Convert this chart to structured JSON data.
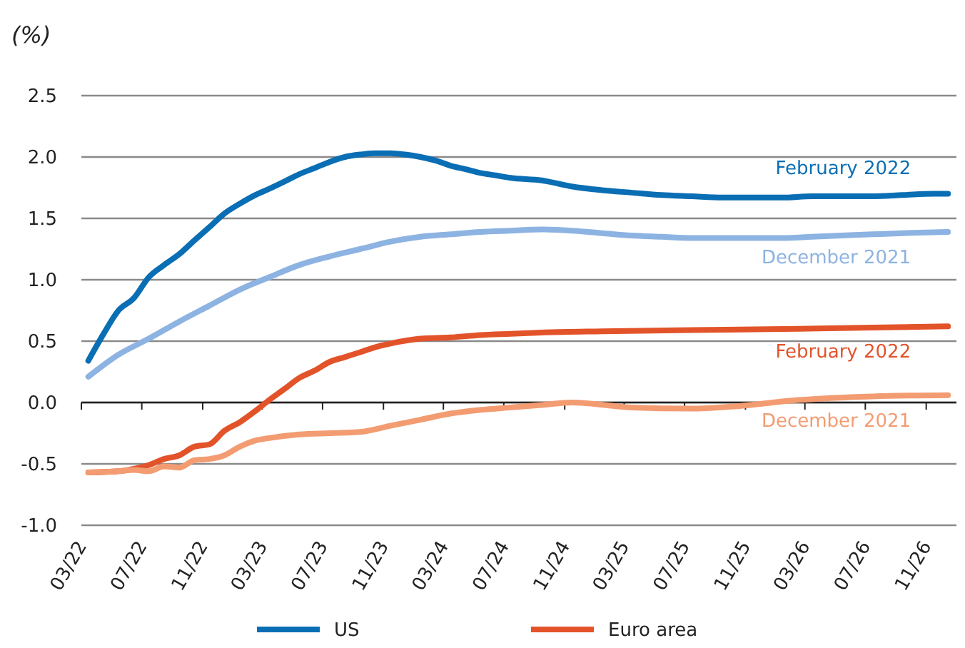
{
  "chart_data": {
    "type": "line",
    "ylabel": "(%)",
    "xlim": [
      "2022-03",
      "2027-01"
    ],
    "xticks": [
      {
        "value": "2022-03",
        "label": "03/22"
      },
      {
        "value": "2022-07",
        "label": "07/22"
      },
      {
        "value": "2022-11",
        "label": "11/22"
      },
      {
        "value": "2023-03",
        "label": "03/23"
      },
      {
        "value": "2023-07",
        "label": "07/23"
      },
      {
        "value": "2023-11",
        "label": "11/23"
      },
      {
        "value": "2024-03",
        "label": "03/24"
      },
      {
        "value": "2024-07",
        "label": "07/24"
      },
      {
        "value": "2024-11",
        "label": "11/24"
      },
      {
        "value": "2025-03",
        "label": "03/25"
      },
      {
        "value": "2025-07",
        "label": "07/25"
      },
      {
        "value": "2025-11",
        "label": "11/25"
      },
      {
        "value": "2026-03",
        "label": "03/26"
      },
      {
        "value": "2026-07",
        "label": "07/26"
      },
      {
        "value": "2026-11",
        "label": "11/26"
      }
    ],
    "ylim": [
      -1.0,
      2.5
    ],
    "yticks": [
      {
        "value": -1.0,
        "label": "-1.0"
      },
      {
        "value": -0.5,
        "label": "-0.5"
      },
      {
        "value": 0,
        "label": "0.0"
      },
      {
        "value": 0.5,
        "label": "0.5"
      },
      {
        "value": 1.0,
        "label": "1.0"
      },
      {
        "value": 1.5,
        "label": "1.5"
      },
      {
        "value": 2.0,
        "label": "2.0"
      },
      {
        "value": 2.5,
        "label": "2.5"
      }
    ],
    "grid": "y",
    "marker": "none",
    "line_style": "solid",
    "annotations": [
      "US",
      "Euro area"
    ],
    "series": [
      {
        "name": "February 2022",
        "color": "#0a6eb4",
        "x": [
          "2022-03-15",
          "2022-04-15",
          "2022-05-15",
          "2022-06-15",
          "2022-07-15",
          "2022-08-15",
          "2022-09-15",
          "2022-10-15",
          "2022-11-15",
          "2022-12-15",
          "2023-01-15",
          "2023-02-15",
          "2023-03-15",
          "2023-04-15",
          "2023-05-15",
          "2023-06-15",
          "2023-07-15",
          "2023-08-15",
          "2023-09-15",
          "2023-10-15",
          "2023-11-15",
          "2023-12-15",
          "2024-01-15",
          "2024-02-15",
          "2024-03-15",
          "2024-04-15",
          "2024-05-15",
          "2024-06-15",
          "2024-07-15",
          "2024-09-15",
          "2024-11-15",
          "2025-01-15",
          "2025-03-15",
          "2025-05-15",
          "2025-07-15",
          "2025-09-15",
          "2025-11-15",
          "2026-01-15",
          "2026-03-15",
          "2026-05-15",
          "2026-07-15",
          "2026-09-15",
          "2026-11-15",
          "2026-12-15"
        ],
        "values": [
          0.34,
          0.56,
          0.75,
          0.85,
          1.02,
          1.12,
          1.21,
          1.32,
          1.43,
          1.54,
          1.62,
          1.69,
          1.74,
          1.8,
          1.86,
          1.91,
          1.96,
          2.0,
          2.02,
          2.03,
          2.03,
          2.02,
          2.0,
          1.97,
          1.93,
          1.9,
          1.87,
          1.85,
          1.83,
          1.81,
          1.76,
          1.73,
          1.71,
          1.69,
          1.68,
          1.67,
          1.67,
          1.67,
          1.68,
          1.68,
          1.68,
          1.69,
          1.7,
          1.7
        ]
      },
      {
        "name": "December 2021",
        "color": "#8db3e2",
        "x": [
          "2022-03-15",
          "2022-05-15",
          "2022-07-15",
          "2022-09-15",
          "2022-11-15",
          "2023-01-15",
          "2023-03-15",
          "2023-05-15",
          "2023-07-15",
          "2023-09-15",
          "2023-11-15",
          "2024-01-15",
          "2024-03-15",
          "2024-05-15",
          "2024-07-15",
          "2024-09-15",
          "2024-11-15",
          "2025-01-15",
          "2025-03-15",
          "2025-05-15",
          "2025-07-15",
          "2025-11-15",
          "2026-01-15",
          "2026-03-15",
          "2026-05-15",
          "2026-07-15",
          "2026-09-15",
          "2026-12-15"
        ],
        "values": [
          0.21,
          0.39,
          0.52,
          0.66,
          0.79,
          0.92,
          1.02,
          1.12,
          1.19,
          1.25,
          1.31,
          1.35,
          1.37,
          1.39,
          1.4,
          1.41,
          1.4,
          1.38,
          1.36,
          1.35,
          1.34,
          1.34,
          1.34,
          1.35,
          1.36,
          1.37,
          1.38,
          1.39
        ]
      },
      {
        "name": "February 2022",
        "color": "#e3532a",
        "x": [
          "2022-03-15",
          "2022-05-15",
          "2022-06-15",
          "2022-07-15",
          "2022-08-15",
          "2022-09-15",
          "2022-10-15",
          "2022-11-15",
          "2022-12-15",
          "2023-01-15",
          "2023-02-15",
          "2023-03-15",
          "2023-04-15",
          "2023-05-15",
          "2023-06-15",
          "2023-07-15",
          "2023-08-15",
          "2023-09-15",
          "2023-10-15",
          "2023-11-15",
          "2024-01-15",
          "2024-03-15",
          "2024-05-15",
          "2024-07-15",
          "2024-09-15",
          "2025-01-15",
          "2025-07-15",
          "2026-02-15",
          "2026-07-15",
          "2026-12-15"
        ],
        "values": [
          -0.57,
          -0.56,
          -0.54,
          -0.51,
          -0.46,
          -0.43,
          -0.36,
          -0.34,
          -0.23,
          -0.16,
          -0.07,
          0.02,
          0.11,
          0.2,
          0.26,
          0.33,
          0.37,
          0.41,
          0.45,
          0.48,
          0.52,
          0.53,
          0.55,
          0.56,
          0.57,
          0.58,
          0.59,
          0.6,
          0.61,
          0.62
        ]
      },
      {
        "name": "December 2021",
        "color": "#f39c72",
        "x": [
          "2022-03-15",
          "2022-05-15",
          "2022-06-15",
          "2022-07-15",
          "2022-08-15",
          "2022-09-15",
          "2022-10-15",
          "2022-11-15",
          "2022-12-15",
          "2023-01-15",
          "2023-02-15",
          "2023-03-15",
          "2023-05-15",
          "2023-07-15",
          "2023-09-15",
          "2023-11-15",
          "2024-01-15",
          "2024-03-15",
          "2024-05-15",
          "2024-07-15",
          "2024-09-15",
          "2024-11-15",
          "2025-03-15",
          "2025-07-15",
          "2025-10-15",
          "2026-02-15",
          "2026-07-15",
          "2026-12-15"
        ],
        "values": [
          -0.57,
          -0.56,
          -0.55,
          -0.56,
          -0.52,
          -0.53,
          -0.47,
          -0.46,
          -0.43,
          -0.36,
          -0.31,
          -0.29,
          -0.26,
          -0.25,
          -0.24,
          -0.19,
          -0.14,
          -0.09,
          -0.06,
          -0.04,
          -0.02,
          0.0,
          -0.04,
          -0.05,
          -0.03,
          0.02,
          0.05,
          0.06
        ]
      }
    ]
  }
}
